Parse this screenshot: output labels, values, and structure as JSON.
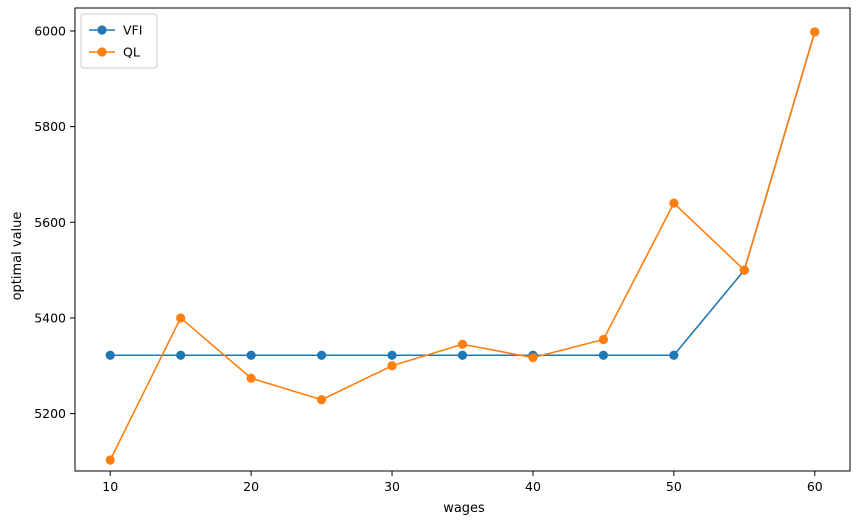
{
  "chart_data": {
    "type": "line",
    "title": "",
    "xlabel": "wages",
    "ylabel": "optimal value",
    "x": [
      10,
      15,
      20,
      25,
      30,
      35,
      40,
      45,
      50,
      55,
      60
    ],
    "xlim": [
      7.5,
      62.5
    ],
    "ylim": [
      5080,
      6048
    ],
    "xticks": [
      10,
      20,
      30,
      40,
      50,
      60
    ],
    "yticks": [
      5200,
      5400,
      5600,
      5800,
      6000
    ],
    "grid": false,
    "legend_position": "upper-left",
    "series": [
      {
        "name": "VFI",
        "color": "#1f77b4",
        "values": [
          5322,
          5322,
          5322,
          5322,
          5322,
          5322,
          5322,
          5322,
          5322,
          5500,
          5998
        ]
      },
      {
        "name": "QL",
        "color": "#ff7f0e",
        "values": [
          5103,
          5400,
          5274,
          5229,
          5300,
          5345,
          5317,
          5355,
          5640,
          5500,
          5998
        ]
      }
    ]
  }
}
